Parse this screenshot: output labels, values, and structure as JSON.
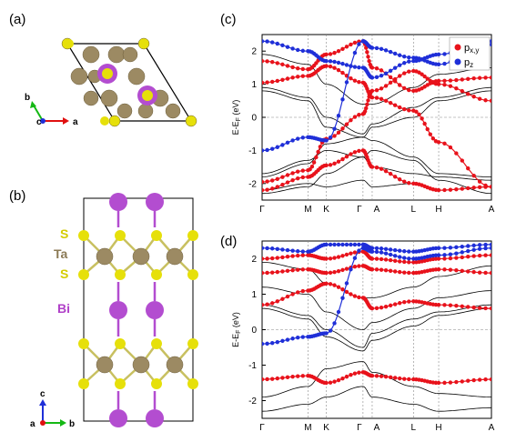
{
  "panels": {
    "a": "(a)",
    "b": "(b)",
    "c": "(c)",
    "d": "(d)"
  },
  "structure": {
    "axes_top": {
      "a": "a",
      "b": "b",
      "c": "c"
    },
    "axes_side": {
      "a": "a",
      "b": "b",
      "c": "c"
    },
    "layer_labels": [
      {
        "text": "S",
        "color": "#d4cc00"
      },
      {
        "text": "Ta",
        "color": "#8b7a55"
      },
      {
        "text": "S",
        "color": "#d4cc00"
      },
      {
        "text": "Bi",
        "color": "#b040c8"
      }
    ],
    "colors": {
      "S": "#e6e00a",
      "Ta": "#9c8a63",
      "Bi": "#b34dd0"
    }
  },
  "chart_data": [
    {
      "type": "line",
      "panel": "(c)",
      "ylabel": "E-E_F (eV)",
      "ylim": [
        -2.5,
        2.5
      ],
      "yticks": [
        -2,
        -1,
        0,
        1,
        2
      ],
      "kpath": [
        "Γ",
        "M",
        "K",
        "Γ",
        "A",
        "L",
        "H",
        "A"
      ],
      "legend": {
        "placement": "top-right",
        "entries": [
          {
            "label": "p",
            "sub": "x,y",
            "color": "#e8121b"
          },
          {
            "label": "p",
            "sub": "z",
            "color": "#1f2fd8"
          }
        ]
      },
      "series": [
        {
          "role": "band",
          "color": "#000000",
          "values": [
            -2.3,
            -2.1,
            -1.7,
            -1.2,
            -1.0,
            -1.3,
            -1.9,
            -2.3
          ]
        },
        {
          "role": "band",
          "color": "#000000",
          "values": [
            -1.8,
            -1.4,
            -0.8,
            -0.6,
            -0.7,
            -1.2,
            -1.7,
            -1.8
          ]
        },
        {
          "role": "band",
          "color": "#000000",
          "values": [
            0.8,
            0.5,
            -0.3,
            -0.6,
            -0.3,
            0.0,
            0.5,
            0.8
          ]
        },
        {
          "role": "band",
          "color": "#000000",
          "values": [
            0.9,
            0.6,
            0.0,
            -0.5,
            -0.2,
            0.3,
            0.6,
            0.9
          ]
        },
        {
          "role": "band",
          "color": "#000000",
          "values": [
            -1.7,
            -1.3,
            -1.0,
            -1.2,
            -1.5,
            -1.7,
            -1.8,
            -1.9
          ]
        },
        {
          "role": "band",
          "color": "#000000",
          "values": [
            1.9,
            1.6,
            1.0,
            0.4,
            0.4,
            0.9,
            1.3,
            1.5
          ]
        },
        {
          "role": "band",
          "color": "#000000",
          "values": [
            -2.2,
            -2.0,
            -2.1,
            -1.9,
            -2.1,
            -2.0,
            -2.2,
            -2.1
          ]
        },
        {
          "role": "proj",
          "color": "#e8121b",
          "values": [
            1.05,
            1.25,
            1.55,
            1.05,
            0.6,
            0.2,
            -0.75,
            -2.1
          ]
        },
        {
          "role": "proj",
          "color": "#e8121b",
          "values": [
            -1.95,
            -1.6,
            -0.65,
            0.1,
            0.8,
            1.4,
            1.0,
            0.5
          ]
        },
        {
          "role": "proj",
          "color": "#e8121b",
          "values": [
            1.7,
            1.45,
            1.9,
            2.3,
            1.5,
            0.8,
            1.1,
            1.2
          ]
        },
        {
          "role": "proj",
          "color": "#e8121b",
          "values": [
            -2.2,
            -1.8,
            -1.45,
            -1.0,
            -1.5,
            -2.0,
            -2.2,
            -2.1
          ]
        },
        {
          "role": "proj",
          "color": "#1f2fd8",
          "values": [
            -1.0,
            -0.6,
            -0.7,
            2.3,
            2.1,
            1.8,
            1.6,
            2.2
          ]
        },
        {
          "role": "proj",
          "color": "#1f2fd8",
          "values": [
            2.3,
            2.0,
            1.7,
            1.5,
            1.2,
            1.7,
            1.9,
            2.3
          ]
        }
      ]
    },
    {
      "type": "line",
      "panel": "(d)",
      "ylabel": "E-E_F (eV)",
      "ylim": [
        -2.5,
        2.5
      ],
      "yticks": [
        -2,
        -1,
        0,
        1,
        2
      ],
      "kpath": [
        "Γ",
        "M",
        "K",
        "Γ",
        "A",
        "L",
        "H",
        "A"
      ],
      "series": [
        {
          "role": "band",
          "color": "#000000",
          "values": [
            0.6,
            0.3,
            -0.2,
            -0.6,
            -0.3,
            0.1,
            0.4,
            0.6
          ]
        },
        {
          "role": "band",
          "color": "#000000",
          "values": [
            0.7,
            0.4,
            0.0,
            -0.5,
            -0.1,
            0.3,
            0.5,
            0.7
          ]
        },
        {
          "role": "band",
          "color": "#000000",
          "values": [
            -1.9,
            -1.6,
            -1.1,
            -0.9,
            -1.2,
            -1.6,
            -1.8,
            -1.9
          ]
        },
        {
          "role": "band",
          "color": "#000000",
          "values": [
            -2.3,
            -2.1,
            -1.9,
            -1.6,
            -1.9,
            -2.1,
            -2.3,
            -2.2
          ]
        },
        {
          "role": "band",
          "color": "#000000",
          "values": [
            1.2,
            1.0,
            0.5,
            0.0,
            0.2,
            0.6,
            0.9,
            1.1
          ]
        },
        {
          "role": "band",
          "color": "#000000",
          "values": [
            1.9,
            1.7,
            1.3,
            0.9,
            0.9,
            1.2,
            1.5,
            1.8
          ]
        },
        {
          "role": "proj",
          "color": "#e8121b",
          "values": [
            0.7,
            1.1,
            1.3,
            0.9,
            0.6,
            0.8,
            0.7,
            0.6
          ]
        },
        {
          "role": "proj",
          "color": "#e8121b",
          "values": [
            -1.4,
            -1.3,
            -1.5,
            -1.2,
            -1.3,
            -1.4,
            -1.5,
            -1.4
          ]
        },
        {
          "role": "proj",
          "color": "#e8121b",
          "values": [
            1.6,
            1.7,
            1.6,
            1.8,
            1.7,
            1.6,
            1.7,
            1.6
          ]
        },
        {
          "role": "proj",
          "color": "#e8121b",
          "values": [
            2.0,
            2.1,
            2.0,
            2.2,
            2.0,
            1.9,
            2.0,
            2.1
          ]
        },
        {
          "role": "proj",
          "color": "#1f2fd8",
          "values": [
            -0.4,
            -0.2,
            -0.1,
            2.3,
            2.2,
            2.0,
            2.1,
            2.3
          ]
        },
        {
          "role": "proj",
          "color": "#1f2fd8",
          "values": [
            2.3,
            2.2,
            2.4,
            2.4,
            2.3,
            2.2,
            2.3,
            2.4
          ]
        }
      ]
    }
  ]
}
